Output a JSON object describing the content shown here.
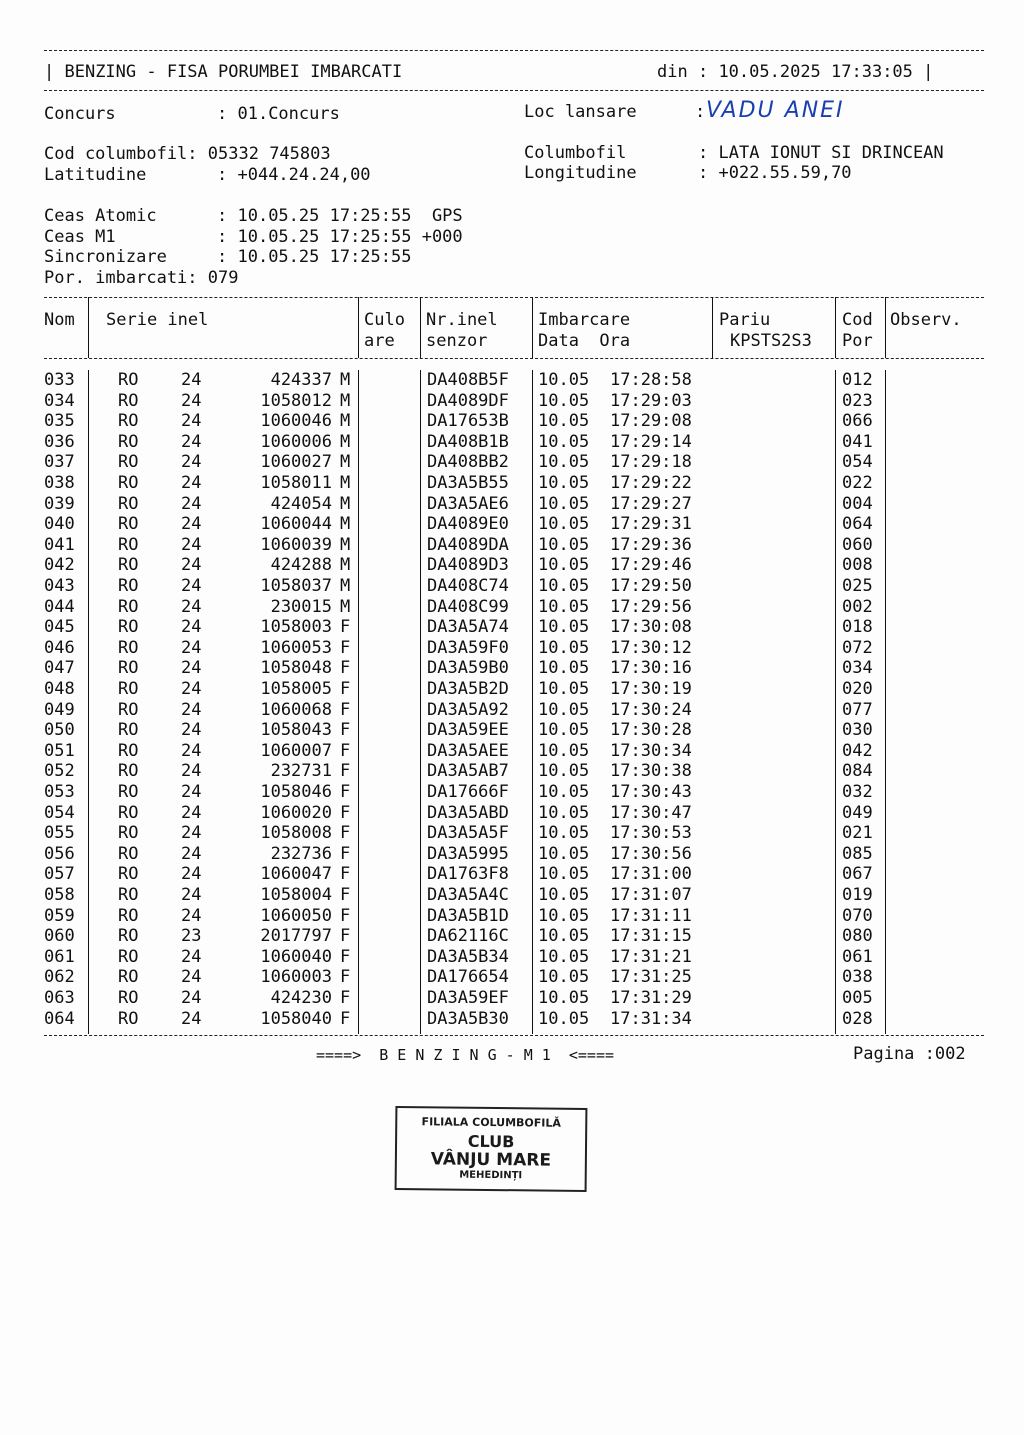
{
  "header": {
    "title": "BENZING - FISA PORUMBEI IMBARCATI",
    "date_label": "din",
    "date_value": "10.05.2025 17:33:05"
  },
  "info": {
    "concurs_label": "Concurs",
    "concurs_value": "01.Concurs",
    "loc_label": "Loc lansare",
    "loc_value": "VADU ANEI",
    "cod_label": "Cod columbofil",
    "cod_value": "05332 745803",
    "columbofil_label": "Columbofil",
    "columbofil_value": "LATA IONUT SI DRINCEAN",
    "lat_label": "Latitudine",
    "lat_value": "+044.24.24,00",
    "long_label": "Longitudine",
    "long_value": "+022.55.59,70",
    "ceas_atomic_label": "Ceas Atomic",
    "ceas_atomic_value": "10.05.25 17:25:55  GPS",
    "ceas_m1_label": "Ceas M1",
    "ceas_m1_value": "10.05.25 17:25:55 +000",
    "sincronizare_label": "Sincronizare",
    "sincronizare_value": "10.05.25 17:25:55",
    "por_label": "Por. imbarcati",
    "por_value": "079"
  },
  "table": {
    "headers": {
      "nom": "Nom",
      "serie": "Serie inel",
      "culo1": "Culo",
      "culo2": "are",
      "nrinel1": "Nr.inel",
      "nrinel2": "senzor",
      "imb1": "Imbarcare",
      "imb2": "Data  Ora",
      "pariu1": "Pariu",
      "pariu2": "KPSTS2S3",
      "cod1": "Cod",
      "cod2": "Por",
      "obs": "Observ."
    },
    "rows": [
      [
        "033",
        "RO",
        "24",
        "424337",
        "M",
        "DA408B5F",
        "10.05",
        "17:28:58",
        "012"
      ],
      [
        "034",
        "RO",
        "24",
        "1058012",
        "M",
        "DA4089DF",
        "10.05",
        "17:29:03",
        "023"
      ],
      [
        "035",
        "RO",
        "24",
        "1060046",
        "M",
        "DA17653B",
        "10.05",
        "17:29:08",
        "066"
      ],
      [
        "036",
        "RO",
        "24",
        "1060006",
        "M",
        "DA408B1B",
        "10.05",
        "17:29:14",
        "041"
      ],
      [
        "037",
        "RO",
        "24",
        "1060027",
        "M",
        "DA408BB2",
        "10.05",
        "17:29:18",
        "054"
      ],
      [
        "038",
        "RO",
        "24",
        "1058011",
        "M",
        "DA3A5B55",
        "10.05",
        "17:29:22",
        "022"
      ],
      [
        "039",
        "RO",
        "24",
        "424054",
        "M",
        "DA3A5AE6",
        "10.05",
        "17:29:27",
        "004"
      ],
      [
        "040",
        "RO",
        "24",
        "1060044",
        "M",
        "DA4089E0",
        "10.05",
        "17:29:31",
        "064"
      ],
      [
        "041",
        "RO",
        "24",
        "1060039",
        "M",
        "DA4089DA",
        "10.05",
        "17:29:36",
        "060"
      ],
      [
        "042",
        "RO",
        "24",
        "424288",
        "M",
        "DA4089D3",
        "10.05",
        "17:29:46",
        "008"
      ],
      [
        "043",
        "RO",
        "24",
        "1058037",
        "M",
        "DA408C74",
        "10.05",
        "17:29:50",
        "025"
      ],
      [
        "044",
        "RO",
        "24",
        "230015",
        "M",
        "DA408C99",
        "10.05",
        "17:29:56",
        "002"
      ],
      [
        "045",
        "RO",
        "24",
        "1058003",
        "F",
        "DA3A5A74",
        "10.05",
        "17:30:08",
        "018"
      ],
      [
        "046",
        "RO",
        "24",
        "1060053",
        "F",
        "DA3A59F0",
        "10.05",
        "17:30:12",
        "072"
      ],
      [
        "047",
        "RO",
        "24",
        "1058048",
        "F",
        "DA3A59B0",
        "10.05",
        "17:30:16",
        "034"
      ],
      [
        "048",
        "RO",
        "24",
        "1058005",
        "F",
        "DA3A5B2D",
        "10.05",
        "17:30:19",
        "020"
      ],
      [
        "049",
        "RO",
        "24",
        "1060068",
        "F",
        "DA3A5A92",
        "10.05",
        "17:30:24",
        "077"
      ],
      [
        "050",
        "RO",
        "24",
        "1058043",
        "F",
        "DA3A59EE",
        "10.05",
        "17:30:28",
        "030"
      ],
      [
        "051",
        "RO",
        "24",
        "1060007",
        "F",
        "DA3A5AEE",
        "10.05",
        "17:30:34",
        "042"
      ],
      [
        "052",
        "RO",
        "24",
        "232731",
        "F",
        "DA3A5AB7",
        "10.05",
        "17:30:38",
        "084"
      ],
      [
        "053",
        "RO",
        "24",
        "1058046",
        "F",
        "DA17666F",
        "10.05",
        "17:30:43",
        "032"
      ],
      [
        "054",
        "RO",
        "24",
        "1060020",
        "F",
        "DA3A5ABD",
        "10.05",
        "17:30:47",
        "049"
      ],
      [
        "055",
        "RO",
        "24",
        "1058008",
        "F",
        "DA3A5A5F",
        "10.05",
        "17:30:53",
        "021"
      ],
      [
        "056",
        "RO",
        "24",
        "232736",
        "F",
        "DA3A5995",
        "10.05",
        "17:30:56",
        "085"
      ],
      [
        "057",
        "RO",
        "24",
        "1060047",
        "F",
        "DA1763F8",
        "10.05",
        "17:31:00",
        "067"
      ],
      [
        "058",
        "RO",
        "24",
        "1058004",
        "F",
        "DA3A5A4C",
        "10.05",
        "17:31:07",
        "019"
      ],
      [
        "059",
        "RO",
        "24",
        "1060050",
        "F",
        "DA3A5B1D",
        "10.05",
        "17:31:11",
        "070"
      ],
      [
        "060",
        "RO",
        "23",
        "2017797",
        "F",
        "DA62116C",
        "10.05",
        "17:31:15",
        "080"
      ],
      [
        "061",
        "RO",
        "24",
        "1060040",
        "F",
        "DA3A5B34",
        "10.05",
        "17:31:21",
        "061"
      ],
      [
        "062",
        "RO",
        "24",
        "1060003",
        "F",
        "DA176654",
        "10.05",
        "17:31:25",
        "038"
      ],
      [
        "063",
        "RO",
        "24",
        "424230",
        "F",
        "DA3A59EF",
        "10.05",
        "17:31:29",
        "005"
      ],
      [
        "064",
        "RO",
        "24",
        "1058040",
        "F",
        "DA3A5B30",
        "10.05",
        "17:31:34",
        "028"
      ]
    ]
  },
  "footer": {
    "device": "====>  B E N Z I N G - M 1  <====",
    "page": "Pagina :002"
  },
  "stamp": {
    "line1": "FILIALA COLUMBOFILĂ",
    "line2": "CLUB",
    "line3": "VÂNJU MARE",
    "line4": "MEHEDINȚI"
  }
}
